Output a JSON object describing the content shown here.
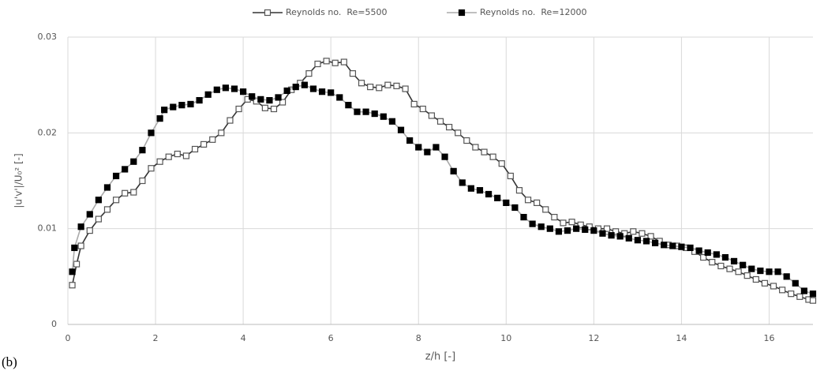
{
  "chart_data": {
    "type": "line",
    "x_label": "z/h [-]",
    "y_label": "|u'v'|/U₀² [-]",
    "annotation": "(b)",
    "xlim": [
      0,
      17
    ],
    "xticks": [
      0,
      2,
      4,
      6,
      8,
      10,
      12,
      14,
      16
    ],
    "ylim": [
      0,
      0.03
    ],
    "yticks": [
      0,
      0.01,
      0.02,
      0.03
    ],
    "grid": true,
    "legend": "top",
    "series": [
      {
        "name": "Reynolds no.  Re=5500",
        "color": "#333333",
        "marker_fill": "#ffffff",
        "marker_stroke": "#555555",
        "x": [
          0.1,
          0.2,
          0.3,
          0.5,
          0.7,
          0.9,
          1.1,
          1.3,
          1.5,
          1.7,
          1.9,
          2.1,
          2.3,
          2.5,
          2.7,
          2.9,
          3.1,
          3.3,
          3.5,
          3.7,
          3.9,
          4.1,
          4.3,
          4.5,
          4.7,
          4.9,
          5.1,
          5.3,
          5.5,
          5.7,
          5.9,
          6.1,
          6.3,
          6.5,
          6.7,
          6.9,
          7.1,
          7.3,
          7.5,
          7.7,
          7.9,
          8.1,
          8.3,
          8.5,
          8.7,
          8.9,
          9.1,
          9.3,
          9.5,
          9.7,
          9.9,
          10.1,
          10.3,
          10.5,
          10.7,
          10.9,
          11.1,
          11.3,
          11.5,
          11.7,
          11.9,
          12.1,
          12.3,
          12.5,
          12.7,
          12.9,
          13.1,
          13.3,
          13.5,
          13.7,
          13.9,
          14.1,
          14.3,
          14.5,
          14.7,
          14.9,
          15.1,
          15.3,
          15.5,
          15.7,
          15.9,
          16.1,
          16.3,
          16.5,
          16.7,
          16.9,
          17.0
        ],
        "values": [
          0.0041,
          0.0063,
          0.0082,
          0.0098,
          0.011,
          0.012,
          0.013,
          0.0137,
          0.0138,
          0.015,
          0.0163,
          0.017,
          0.0175,
          0.0178,
          0.0176,
          0.0183,
          0.0188,
          0.0193,
          0.02,
          0.0213,
          0.0225,
          0.0235,
          0.0233,
          0.0226,
          0.0225,
          0.0232,
          0.0245,
          0.0252,
          0.0262,
          0.0272,
          0.0275,
          0.0273,
          0.0274,
          0.0262,
          0.0252,
          0.0248,
          0.0247,
          0.025,
          0.0249,
          0.0246,
          0.023,
          0.0225,
          0.0218,
          0.0212,
          0.0206,
          0.02,
          0.0192,
          0.0185,
          0.018,
          0.0175,
          0.0168,
          0.0155,
          0.014,
          0.013,
          0.0127,
          0.012,
          0.0112,
          0.0106,
          0.0107,
          0.0104,
          0.0102,
          0.01,
          0.01,
          0.0097,
          0.0095,
          0.0097,
          0.0095,
          0.0092,
          0.0087,
          0.0083,
          0.0082,
          0.008,
          0.0076,
          0.007,
          0.0065,
          0.0061,
          0.0058,
          0.0055,
          0.0051,
          0.0047,
          0.0043,
          0.004,
          0.0036,
          0.0032,
          0.0029,
          0.0026,
          0.0025
        ]
      },
      {
        "name": "Reynolds no.  Re=12000",
        "color": "#aaaaaa",
        "marker_fill": "#000000",
        "marker_stroke": "#000000",
        "x": [
          0.1,
          0.15,
          0.3,
          0.5,
          0.7,
          0.9,
          1.1,
          1.3,
          1.5,
          1.7,
          1.9,
          2.1,
          2.2,
          2.4,
          2.6,
          2.8,
          3.0,
          3.2,
          3.4,
          3.6,
          3.8,
          4.0,
          4.2,
          4.4,
          4.6,
          4.8,
          5.0,
          5.2,
          5.4,
          5.6,
          5.8,
          6.0,
          6.2,
          6.4,
          6.6,
          6.8,
          7.0,
          7.2,
          7.4,
          7.6,
          7.8,
          8.0,
          8.2,
          8.4,
          8.6,
          8.8,
          9.0,
          9.2,
          9.4,
          9.6,
          9.8,
          10.0,
          10.2,
          10.4,
          10.6,
          10.8,
          11.0,
          11.2,
          11.4,
          11.6,
          11.8,
          12.0,
          12.2,
          12.4,
          12.6,
          12.8,
          13.0,
          13.2,
          13.4,
          13.6,
          13.8,
          14.0,
          14.2,
          14.4,
          14.6,
          14.8,
          15.0,
          15.2,
          15.4,
          15.6,
          15.8,
          16.0,
          16.2,
          16.4,
          16.6,
          16.8,
          17.0
        ],
        "values": [
          0.0055,
          0.008,
          0.0102,
          0.0115,
          0.013,
          0.0143,
          0.0155,
          0.0162,
          0.017,
          0.0182,
          0.02,
          0.0215,
          0.0224,
          0.0227,
          0.0229,
          0.023,
          0.0234,
          0.024,
          0.0245,
          0.0247,
          0.0246,
          0.0243,
          0.0238,
          0.0235,
          0.0234,
          0.0237,
          0.0244,
          0.0248,
          0.025,
          0.0246,
          0.0243,
          0.0242,
          0.0237,
          0.0229,
          0.0222,
          0.0222,
          0.022,
          0.0217,
          0.0212,
          0.0203,
          0.0192,
          0.0185,
          0.018,
          0.0185,
          0.0175,
          0.016,
          0.0148,
          0.0142,
          0.014,
          0.0136,
          0.0132,
          0.0127,
          0.0122,
          0.0112,
          0.0105,
          0.0102,
          0.01,
          0.0097,
          0.0098,
          0.01,
          0.0099,
          0.0098,
          0.0095,
          0.0093,
          0.0092,
          0.009,
          0.0088,
          0.0087,
          0.0085,
          0.0083,
          0.0082,
          0.0081,
          0.008,
          0.0077,
          0.0075,
          0.0073,
          0.007,
          0.0066,
          0.0062,
          0.0058,
          0.0056,
          0.0055,
          0.0055,
          0.005,
          0.0043,
          0.0035,
          0.0032
        ]
      }
    ]
  }
}
